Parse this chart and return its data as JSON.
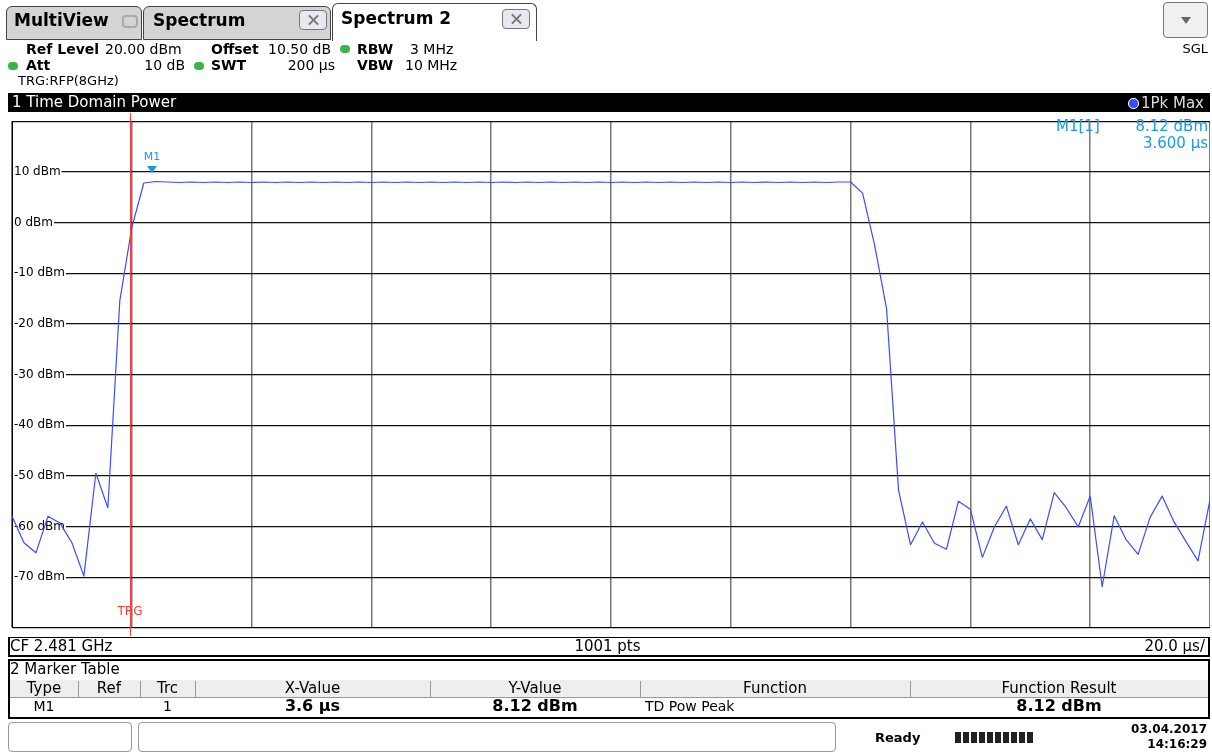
{
  "chart_data": {
    "type": "line",
    "title": "1 Time Domain Power",
    "categories": [
      null,
      null,
      null,
      null,
      null,
      null,
      null,
      null,
      null,
      null,
      null,
      null,
      null,
      null,
      null,
      null,
      null,
      null,
      null,
      null,
      null,
      null,
      null,
      null,
      null,
      null,
      null,
      null,
      null,
      null,
      null,
      null,
      null,
      null,
      null,
      null,
      null,
      null,
      null,
      null,
      null,
      null,
      null,
      null,
      null,
      null,
      null,
      null,
      null,
      null,
      null,
      null,
      null,
      null,
      null,
      null,
      null,
      null,
      null,
      null,
      null,
      null,
      null,
      null,
      null,
      null,
      null,
      null,
      null,
      null,
      null,
      null,
      null,
      null,
      null,
      null,
      null,
      null,
      null,
      null,
      null,
      null,
      null,
      null,
      null,
      null,
      null,
      null,
      null,
      null,
      null,
      null,
      null,
      null,
      null,
      null,
      null,
      null,
      null,
      null,
      null
    ],
    "series": [
      {
        "name": "1Pk Max",
        "color": "#3c4cff",
        "values": [
          -58,
          -63.2,
          -65.2,
          -58,
          -59.3,
          -63.2,
          -69.8,
          -49.5,
          -56.3,
          -15.4,
          -1,
          7.8,
          8.1,
          8,
          7.9,
          8,
          7.9,
          8,
          7.9,
          8,
          7.9,
          8,
          7.9,
          8,
          7.9,
          8,
          7.9,
          8,
          7.9,
          8,
          7.9,
          8,
          7.9,
          8,
          7.9,
          8,
          7.9,
          8,
          7.9,
          8,
          7.9,
          8,
          7.9,
          8,
          7.9,
          8,
          7.9,
          8,
          7.9,
          8,
          7.9,
          8,
          7.9,
          8,
          7.9,
          8,
          7.9,
          8,
          7.9,
          8,
          7.9,
          8,
          7.9,
          8,
          7.9,
          8,
          7.9,
          8,
          7.9,
          8,
          8,
          5.8,
          -4.4,
          -17,
          -52.8,
          -63.6,
          -59.1,
          -63.3,
          -64.5,
          -55,
          -56.6,
          -66.1,
          -60.1,
          -56,
          -63.6,
          -58.5,
          -62.6,
          -53.3,
          -56.3,
          -60.1,
          -54,
          -71.9,
          -57.9,
          -62.6,
          -65.5,
          -58.2,
          -54,
          -59.1,
          -63,
          -66.8,
          -54.7
        ]
      }
    ],
    "ylim": [
      -80,
      20
    ],
    "yticks": [
      {
        "value": -80,
        "label": null
      },
      {
        "value": -70,
        "label": "-70 dBm"
      },
      {
        "value": -60,
        "label": "-60 dBm"
      },
      {
        "value": -50,
        "label": "-50 dBm"
      },
      {
        "value": -40,
        "label": "-40 dBm"
      },
      {
        "value": -30,
        "label": "-30 dBm"
      },
      {
        "value": -20,
        "label": "-20 dBm"
      },
      {
        "value": -10,
        "label": "-10 dBm"
      },
      {
        "value": 0,
        "label": "0 dBm"
      },
      {
        "value": 10,
        "label": "10 dBm"
      },
      {
        "value": 20,
        "label": null
      }
    ],
    "tick_labels": "y",
    "grid": true,
    "legend": "top right",
    "marker": "none",
    "line_style": "solid",
    "annotations": [
      "MultiView",
      "Spectrum",
      "Spectrum 2",
      "Ref Level",
      "20.00 dBm",
      "Offset",
      "10.50 dB",
      "RBW",
      "3 MHz",
      "Att",
      "10 dB",
      "SWT",
      "200 µs",
      "VBW",
      "10 MHz",
      "TRG:RFP(8GHz)",
      "SGL",
      "M1[1]",
      "8.12 dBm",
      "3.600 µs",
      "CF 2.481 GHz",
      "1001 pts",
      "20.0 µs/",
      "2 Marker Table",
      "Type",
      "Ref",
      "Trc",
      "X-Value",
      "Y-Value",
      "Function",
      "Function Result",
      "M1",
      "1",
      "3.6 µs",
      "8.12 dBm",
      "TD Pow Peak",
      "8.12 dBm",
      "Ready",
      "03.04.2017",
      "14:16:29",
      "M1",
      "TRG"
    ]
  }
}
